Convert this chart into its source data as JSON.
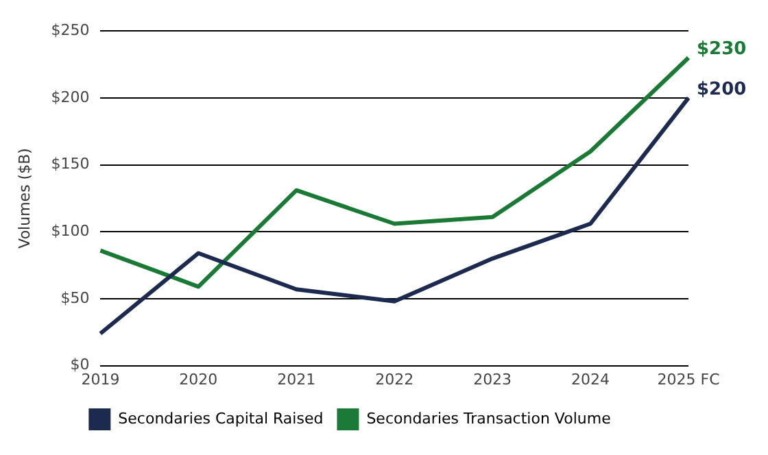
{
  "chart_data": {
    "type": "line",
    "ylabel": "Volumes ($B)",
    "categories": [
      "2019",
      "2020",
      "2021",
      "2022",
      "2023",
      "2024",
      "2025 FC"
    ],
    "series": [
      {
        "name": "Secondaries Capital Raised",
        "color": "#1c2a4f",
        "values": [
          24,
          84,
          57,
          48,
          80,
          106,
          200
        ]
      },
      {
        "name": "Secondaries Transaction Volume",
        "color": "#1a7a35",
        "values": [
          86,
          59,
          131,
          106,
          111,
          160,
          230
        ]
      }
    ],
    "ylim": [
      0,
      250
    ],
    "yticks": [
      {
        "value": 0,
        "label": "$0"
      },
      {
        "value": 50,
        "label": "$50"
      },
      {
        "value": 100,
        "label": "$100"
      },
      {
        "value": 150,
        "label": "$150"
      },
      {
        "value": 200,
        "label": "$200"
      },
      {
        "value": 250,
        "label": "$250"
      }
    ],
    "grid": "y",
    "legend": "bottom",
    "marker": "none",
    "line_style": "solid",
    "annotations": [
      {
        "text": "$230",
        "x": "2025 FC",
        "y": 230
      },
      {
        "text": "$200",
        "x": "2025 FC",
        "y": 200
      }
    ]
  }
}
